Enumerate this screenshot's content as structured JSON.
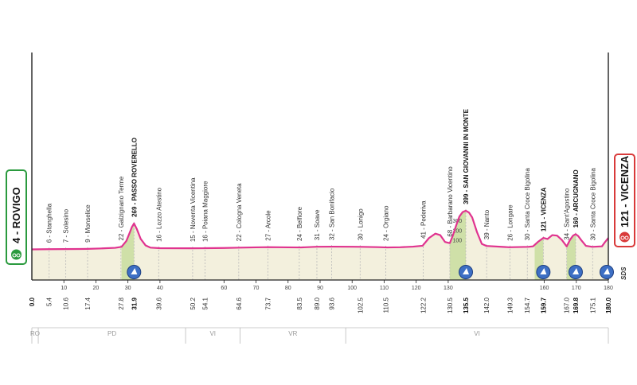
{
  "chart_data": {
    "type": "area",
    "xlabel": "",
    "ylabel": "",
    "xlim": [
      0,
      180
    ],
    "ylim": [
      0,
      500
    ],
    "elevation_ticks": [
      "300",
      "200",
      "100"
    ],
    "x_ticks": [
      "10",
      "20",
      "30",
      "40",
      "60",
      "70",
      "80",
      "90",
      "100",
      "110",
      "120",
      "130",
      "160",
      "170",
      "180"
    ],
    "start": {
      "label": "4 - ROVIGO",
      "km": 0,
      "alt": 4,
      "km_label": "0.0"
    },
    "finish": {
      "label": "121 - VICENZA",
      "km": 180,
      "alt": 121,
      "km_label": "180.0"
    },
    "waypoints": [
      {
        "km": 5.4,
        "km_label": "5.4",
        "label": "6 - Stanghella",
        "key": false
      },
      {
        "km": 10.6,
        "km_label": "10.6",
        "label": "7 - Solesino",
        "key": false
      },
      {
        "km": 17.4,
        "km_label": "17.4",
        "label": "9 - Monselice",
        "key": false
      },
      {
        "km": 27.8,
        "km_label": "27.8",
        "label": "22 - Galzignano Terme",
        "key": false
      },
      {
        "km": 31.9,
        "km_label": "31.9",
        "label": "269 - PASSO ROVERELLO",
        "key": true
      },
      {
        "km": 39.6,
        "km_label": "39.6",
        "label": "16 - Lozzo Atestino",
        "key": false
      },
      {
        "km": 50.2,
        "km_label": "50.2",
        "label": "15 - Noventa Vicentina",
        "key": false
      },
      {
        "km": 54.1,
        "km_label": "54.1",
        "label": "16 - Poiana Maggiore",
        "key": false
      },
      {
        "km": 64.6,
        "km_label": "64.6",
        "label": "22 - Cologna Veneta",
        "key": false
      },
      {
        "km": 73.7,
        "km_label": "73.7",
        "label": "27 - Arcole",
        "key": false
      },
      {
        "km": 83.5,
        "km_label": "83.5",
        "label": "24 - Belfiore",
        "key": false
      },
      {
        "km": 89.0,
        "km_label": "89.0",
        "label": "31 - Soave",
        "key": false
      },
      {
        "km": 93.6,
        "km_label": "93.6",
        "label": "32 - San Bonifacio",
        "key": false
      },
      {
        "km": 102.5,
        "km_label": "102.5",
        "label": "30 - Lonigo",
        "key": false
      },
      {
        "km": 110.5,
        "km_label": "110.5",
        "label": "24 - Orgiano",
        "key": false
      },
      {
        "km": 122.2,
        "km_label": "122.2",
        "label": "41 - Pederiva",
        "key": false
      },
      {
        "km": 130.5,
        "km_label": "130.5",
        "label": "68 - Barbarano Vicentino",
        "key": false
      },
      {
        "km": 135.5,
        "km_label": "135.5",
        "label": "399 - SAN GIOVANNI IN MONTE",
        "key": true
      },
      {
        "km": 142.0,
        "km_label": "142.0",
        "label": "39 - Nanto",
        "key": false
      },
      {
        "km": 149.3,
        "km_label": "149.3",
        "label": "26 - Longare",
        "key": false
      },
      {
        "km": 154.7,
        "km_label": "154.7",
        "label": "30 - Santa Croce Bigolina",
        "key": false
      },
      {
        "km": 159.7,
        "km_label": "159.7",
        "label": "121 - VICENZA",
        "key": true
      },
      {
        "km": 167.0,
        "km_label": "167.0",
        "label": "34 - Sant'Agostino",
        "key": false
      },
      {
        "km": 169.8,
        "km_label": "169.8",
        "label": "160 - ARCUGNANO",
        "key": true
      },
      {
        "km": 175.1,
        "km_label": "175.1",
        "label": "30 - Santa Croce Bigolina",
        "key": false
      }
    ],
    "profile": [
      [
        0,
        4
      ],
      [
        5,
        6
      ],
      [
        10,
        7
      ],
      [
        15,
        8
      ],
      [
        17.4,
        9
      ],
      [
        22,
        14
      ],
      [
        26,
        20
      ],
      [
        28,
        30
      ],
      [
        29.5,
        90
      ],
      [
        30.5,
        170
      ],
      [
        31.2,
        230
      ],
      [
        31.9,
        269
      ],
      [
        32.8,
        210
      ],
      [
        34,
        110
      ],
      [
        35.5,
        45
      ],
      [
        37,
        22
      ],
      [
        40,
        16
      ],
      [
        50,
        15
      ],
      [
        54,
        16
      ],
      [
        60,
        18
      ],
      [
        65,
        22
      ],
      [
        70,
        25
      ],
      [
        74,
        27
      ],
      [
        80,
        25
      ],
      [
        84,
        24
      ],
      [
        89,
        31
      ],
      [
        94,
        32
      ],
      [
        100,
        31
      ],
      [
        103,
        30
      ],
      [
        108,
        27
      ],
      [
        111,
        24
      ],
      [
        115,
        26
      ],
      [
        119,
        32
      ],
      [
        122,
        41
      ],
      [
        124,
        120
      ],
      [
        126,
        165
      ],
      [
        127.5,
        150
      ],
      [
        129,
        80
      ],
      [
        130.5,
        68
      ],
      [
        131.5,
        150
      ],
      [
        132.5,
        250
      ],
      [
        133.5,
        340
      ],
      [
        134.5,
        385
      ],
      [
        135.5,
        399
      ],
      [
        136.5,
        380
      ],
      [
        137.5,
        330
      ],
      [
        139,
        180
      ],
      [
        140.5,
        60
      ],
      [
        142,
        39
      ],
      [
        149,
        26
      ],
      [
        155,
        30
      ],
      [
        156.5,
        35
      ],
      [
        158,
        80
      ],
      [
        159.7,
        121
      ],
      [
        161,
        110
      ],
      [
        162.5,
        150
      ],
      [
        164,
        145
      ],
      [
        165.5,
        100
      ],
      [
        167,
        34
      ],
      [
        168,
        100
      ],
      [
        169,
        145
      ],
      [
        169.8,
        160
      ],
      [
        170.6,
        140
      ],
      [
        171.5,
        100
      ],
      [
        173,
        40
      ],
      [
        175,
        30
      ],
      [
        178,
        35
      ],
      [
        179,
        80
      ],
      [
        180,
        121
      ]
    ],
    "climbs": [
      {
        "start": 28,
        "end": 31.9,
        "color": "#cfe0a8"
      },
      {
        "start": 130.5,
        "end": 135.5,
        "color": "#cfe0a8"
      },
      {
        "start": 157,
        "end": 159.7,
        "color": "#cfe0a8"
      },
      {
        "start": 167,
        "end": 169.8,
        "color": "#cfe0a8"
      }
    ],
    "checkpoints": [
      31.9,
      135.5,
      159.7,
      169.8,
      180
    ],
    "provinces": [
      {
        "label": "RO",
        "from": 0,
        "to": 2
      },
      {
        "label": "PD",
        "from": 2,
        "to": 48
      },
      {
        "label": "VI",
        "from": 48,
        "to": 65
      },
      {
        "label": "VR",
        "from": 65,
        "to": 98
      },
      {
        "label": "VI",
        "from": 98,
        "to": 180
      }
    ]
  },
  "credit": "SDS",
  "colors": {
    "profile_line": "#e0338f",
    "terrain": "#f3f0dd",
    "climb_fill": "#cfe0a8",
    "start_box": "#2a9a3e",
    "finish_box": "#d93a3a",
    "marker": "#3d6fc4",
    "axis": "#222222"
  }
}
